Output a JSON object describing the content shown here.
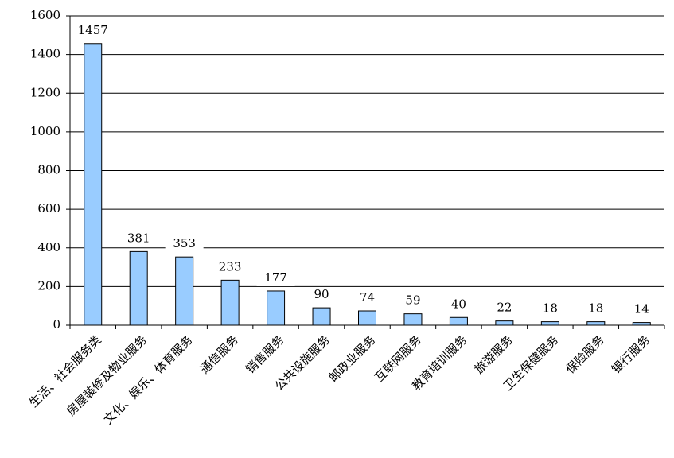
{
  "chart_data": {
    "type": "bar",
    "categories": [
      "生活、社会服务类",
      "房屋装修及物业服务",
      "文化、娱乐、体育服务",
      "通信服务",
      "销售服务",
      "公共设施服务",
      "邮政业服务",
      "互联网服务",
      "教育培训服务",
      "旅游服务",
      "卫生保健服务",
      "保险服务",
      "银行服务"
    ],
    "values": [
      1457,
      381,
      353,
      233,
      177,
      90,
      74,
      59,
      40,
      22,
      18,
      18,
      14
    ],
    "color": "#99ccff",
    "ylim": [
      0,
      1600
    ],
    "yticks": [
      0,
      200,
      400,
      600,
      800,
      1000,
      1200,
      1400,
      1600
    ],
    "grid": true
  }
}
